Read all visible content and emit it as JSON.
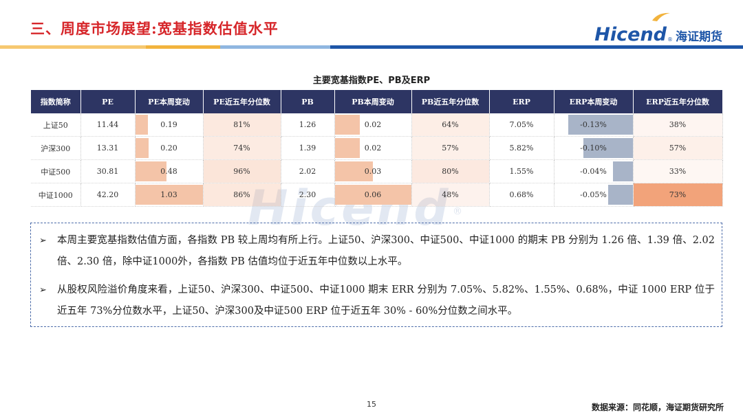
{
  "header": {
    "title": "三、周度市场展望:宽基指数估值水平",
    "logo_text": "Hicend",
    "logo_cn": "海证期货"
  },
  "colors": {
    "title_red": "#d6262a",
    "bar_yellow": "#f2b33d",
    "bar_blue": "#1e56a8",
    "bar_light_blue": "#8fb6e0",
    "header_navy": "#2d3563",
    "pos_change_orange": "#f4c4a8",
    "neg_change_steel": "#a8b4c8",
    "pct_light": "#fde9df",
    "pct_strong": "#f2a37a"
  },
  "watermark": "Hicend",
  "table": {
    "caption": "主要宽基指数PE、PB及ERP",
    "columns": [
      "指数简称",
      "PE",
      "PE本周变动",
      "PE近五年分位数",
      "PB",
      "PB本周变动",
      "PB近五年分位数",
      "ERP",
      "ERP本周变动",
      "ERP近五年分位数"
    ],
    "rows": [
      {
        "name": "上证50",
        "pe": "11.44",
        "pe_chg": "0.19",
        "pe_chg_val": 0.19,
        "pe_pct": "81%",
        "pe_pct_val": 81,
        "pb": "1.26",
        "pb_chg": "0.02",
        "pb_chg_val": 0.02,
        "pb_pct": "64%",
        "pb_pct_val": 64,
        "erp": "7.05%",
        "erp_chg": "-0.13%",
        "erp_chg_val": -0.13,
        "erp_pct": "38%",
        "erp_pct_val": 38
      },
      {
        "name": "沪深300",
        "pe": "13.31",
        "pe_chg": "0.20",
        "pe_chg_val": 0.2,
        "pe_pct": "74%",
        "pe_pct_val": 74,
        "pb": "1.39",
        "pb_chg": "0.02",
        "pb_chg_val": 0.02,
        "pb_pct": "57%",
        "pb_pct_val": 57,
        "erp": "5.82%",
        "erp_chg": "-0.10%",
        "erp_chg_val": -0.1,
        "erp_pct": "57%",
        "erp_pct_val": 57
      },
      {
        "name": "中证500",
        "pe": "30.81",
        "pe_chg": "0.48",
        "pe_chg_val": 0.48,
        "pe_pct": "96%",
        "pe_pct_val": 96,
        "pb": "2.02",
        "pb_chg": "0.03",
        "pb_chg_val": 0.03,
        "pb_pct": "80%",
        "pb_pct_val": 80,
        "erp": "1.55%",
        "erp_chg": "-0.04%",
        "erp_chg_val": -0.04,
        "erp_pct": "33%",
        "erp_pct_val": 33
      },
      {
        "name": "中证1000",
        "pe": "42.20",
        "pe_chg": "1.03",
        "pe_chg_val": 1.03,
        "pe_pct": "86%",
        "pe_pct_val": 86,
        "pb": "2.30",
        "pb_chg": "0.06",
        "pb_chg_val": 0.06,
        "pb_pct": "48%",
        "pb_pct_val": 48,
        "erp": "0.68%",
        "erp_chg": "-0.05%",
        "erp_chg_val": -0.05,
        "erp_pct": "73%",
        "erp_pct_val": 73
      }
    ]
  },
  "summary": {
    "bullets": [
      "本周主要宽基指数估值方面，各指数 PB 较上周均有所上行。上证50、沪深300、中证500、中证1000 的期末 PB 分别为 1.26 倍、1.39 倍、2.02 倍、2.30 倍，除中证1000外，各指数 PB 估值均位于近五年中位数以上水平。",
      "从股权风险溢价角度来看，上证50、沪深300、中证500、中证1000 期末 ERR 分别为 7.05%、5.82%、1.55%、0.68%，中证 1000 ERP 位于近五年 73%分位数水平，上证50、沪深300及中证500 ERP 位于近五年 30% - 60%分位数之间水平。"
    ]
  },
  "footer": {
    "page_number": "15",
    "source": "数据来源：同花顺，海证期货研究所"
  }
}
